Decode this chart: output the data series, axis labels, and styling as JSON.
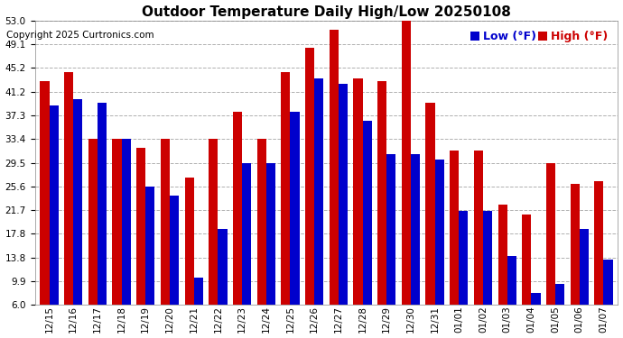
{
  "title": "Outdoor Temperature Daily High/Low 20250108",
  "copyright": "Copyright 2025 Curtronics.com",
  "legend_low": "Low (°F)",
  "legend_high": "High (°F)",
  "dates": [
    "12/15",
    "12/16",
    "12/17",
    "12/18",
    "12/19",
    "12/20",
    "12/21",
    "12/22",
    "12/23",
    "12/24",
    "12/25",
    "12/26",
    "12/27",
    "12/28",
    "12/29",
    "12/30",
    "12/31",
    "01/01",
    "01/02",
    "01/03",
    "01/04",
    "01/05",
    "01/06",
    "01/07"
  ],
  "highs": [
    43.0,
    44.5,
    33.5,
    33.5,
    32.0,
    33.5,
    27.0,
    33.5,
    38.0,
    33.5,
    44.5,
    48.5,
    51.5,
    43.5,
    43.0,
    53.0,
    39.5,
    31.5,
    31.5,
    22.5,
    21.0,
    29.5,
    26.0,
    26.5
  ],
  "lows": [
    39.0,
    40.0,
    39.5,
    33.5,
    25.5,
    24.0,
    10.5,
    18.5,
    29.5,
    29.5,
    38.0,
    43.5,
    42.5,
    36.5,
    31.0,
    31.0,
    30.0,
    21.5,
    21.5,
    14.0,
    8.0,
    9.5,
    18.5,
    13.5
  ],
  "high_color": "#cc0000",
  "low_color": "#0000cc",
  "ylim_min": 6.0,
  "ylim_max": 53.0,
  "yticks": [
    6.0,
    9.9,
    13.8,
    17.8,
    21.7,
    25.6,
    29.5,
    33.4,
    37.3,
    41.2,
    45.2,
    49.1,
    53.0
  ],
  "bg_color": "#ffffff",
  "grid_color": "#b0b0b0",
  "bar_width": 0.38,
  "title_fontsize": 11,
  "copyright_fontsize": 7.5,
  "legend_fontsize": 9,
  "tick_fontsize": 7.5
}
